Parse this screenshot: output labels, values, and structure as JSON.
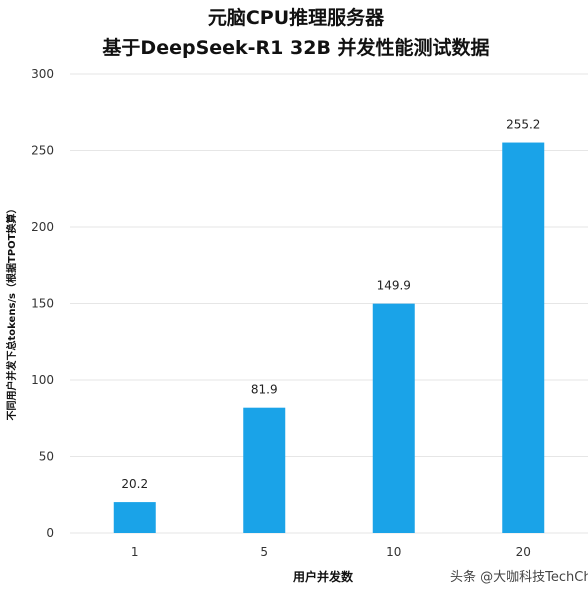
{
  "chart_data": {
    "type": "bar",
    "title_lines": [
      "元脑CPU推理服务器",
      "基于DeepSeek-R1 32B 并发性能测试数据"
    ],
    "categories": [
      "1",
      "5",
      "10",
      "20"
    ],
    "values": [
      20.2,
      81.9,
      149.9,
      255.2
    ],
    "data_labels": [
      "20.2",
      "81.9",
      "149.9",
      "255.2"
    ],
    "xlabel": "用户并发数",
    "ylabel": "不同用户并发下总tokens/s（根据TPOT换算）",
    "ylim": [
      0,
      300
    ],
    "yticks": [
      0,
      50,
      100,
      150,
      200,
      250,
      300
    ],
    "grid": true,
    "bar_color": "#1aa3e8"
  },
  "watermark": "头条 @大咖科技TechChic"
}
